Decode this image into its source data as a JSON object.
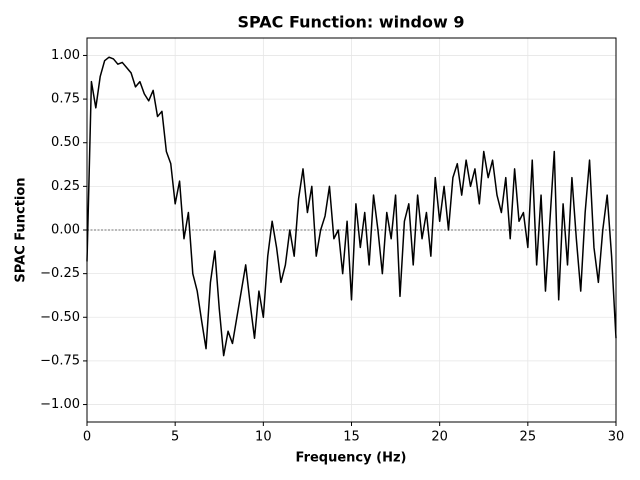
{
  "chart_data": {
    "type": "line",
    "title": "SPAC Function: window 9",
    "x_label": "Frequency (Hz)",
    "y_label": "SPAC Function",
    "x": [
      0,
      0.25,
      0.5,
      0.75,
      1,
      1.25,
      1.5,
      1.75,
      2,
      2.25,
      2.5,
      2.75,
      3,
      3.25,
      3.5,
      3.75,
      4,
      4.25,
      4.5,
      4.75,
      5,
      5.25,
      5.5,
      5.75,
      6,
      6.25,
      6.5,
      6.75,
      7,
      7.25,
      7.5,
      7.75,
      8,
      8.25,
      8.5,
      8.75,
      9,
      9.25,
      9.5,
      9.75,
      10,
      10.25,
      10.5,
      10.75,
      11,
      11.25,
      11.5,
      11.75,
      12,
      12.25,
      12.5,
      12.75,
      13,
      13.25,
      13.5,
      13.75,
      14,
      14.25,
      14.5,
      14.75,
      15,
      15.25,
      15.5,
      15.75,
      16,
      16.25,
      16.5,
      16.75,
      17,
      17.25,
      17.5,
      17.75,
      18,
      18.25,
      18.5,
      18.75,
      19,
      19.25,
      19.5,
      19.75,
      20,
      20.25,
      20.5,
      20.75,
      21,
      21.25,
      21.5,
      21.75,
      22,
      22.25,
      22.5,
      22.75,
      23,
      23.25,
      23.5,
      23.75,
      24,
      24.25,
      24.5,
      24.75,
      25,
      25.25,
      25.5,
      25.75,
      26,
      26.25,
      26.5,
      26.75,
      27,
      27.25,
      27.5,
      27.75,
      28,
      28.25,
      28.5,
      28.75,
      29,
      29.25,
      29.5,
      29.75,
      30
    ],
    "series": [
      {
        "name": "SPAC",
        "color": "#000000",
        "values": [
          -0.18,
          0.85,
          0.7,
          0.88,
          0.97,
          0.99,
          0.98,
          0.95,
          0.96,
          0.93,
          0.9,
          0.82,
          0.85,
          0.78,
          0.74,
          0.8,
          0.65,
          0.68,
          0.45,
          0.38,
          0.15,
          0.28,
          -0.05,
          0.1,
          -0.25,
          -0.35,
          -0.52,
          -0.68,
          -0.3,
          -0.12,
          -0.45,
          -0.72,
          -0.58,
          -0.65,
          -0.5,
          -0.35,
          -0.2,
          -0.42,
          -0.62,
          -0.35,
          -0.5,
          -0.15,
          0.05,
          -0.1,
          -0.3,
          -0.2,
          0.0,
          -0.15,
          0.18,
          0.35,
          0.1,
          0.25,
          -0.15,
          0.0,
          0.08,
          0.25,
          -0.05,
          0.0,
          -0.25,
          0.05,
          -0.4,
          0.15,
          -0.1,
          0.1,
          -0.2,
          0.2,
          0.0,
          -0.25,
          0.1,
          -0.05,
          0.2,
          -0.38,
          0.05,
          0.15,
          -0.2,
          0.2,
          -0.05,
          0.1,
          -0.15,
          0.3,
          0.05,
          0.25,
          0.0,
          0.3,
          0.38,
          0.2,
          0.4,
          0.25,
          0.35,
          0.15,
          0.45,
          0.3,
          0.4,
          0.2,
          0.1,
          0.3,
          -0.05,
          0.35,
          0.05,
          0.1,
          -0.1,
          0.4,
          -0.2,
          0.2,
          -0.35,
          0.05,
          0.45,
          -0.4,
          0.15,
          -0.2,
          0.3,
          -0.05,
          -0.35,
          0.1,
          0.4,
          -0.1,
          -0.3,
          0.0,
          0.2,
          -0.15,
          -0.62
        ]
      }
    ],
    "hline": 0,
    "xlim": [
      0,
      30
    ],
    "xticks": [
      0,
      5,
      10,
      15,
      20,
      25,
      30
    ],
    "ylim": [
      -1.1,
      1.1
    ],
    "yticks": [
      {
        "value": -1,
        "label": "−1.00"
      },
      {
        "value": -0.75,
        "label": "−0.75"
      },
      {
        "value": -0.5,
        "label": "−0.50"
      },
      {
        "value": -0.25,
        "label": "−0.25"
      },
      {
        "value": 0,
        "label": "0.00"
      },
      {
        "value": 0.25,
        "label": "0.25"
      },
      {
        "value": 0.5,
        "label": "0.50"
      },
      {
        "value": 0.75,
        "label": "0.75"
      },
      {
        "value": 1,
        "label": "1.00"
      }
    ],
    "grid": true
  }
}
